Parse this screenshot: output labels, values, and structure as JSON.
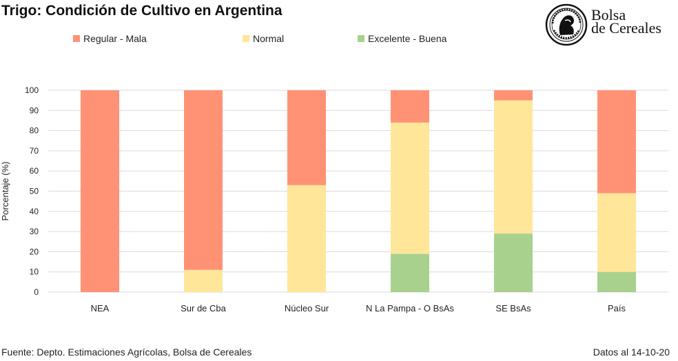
{
  "header": {
    "title": "Trigo: Condición de Cultivo en Argentina"
  },
  "logo": {
    "line1": "Bolsa",
    "line2": "de Cereales"
  },
  "footer": {
    "source": "Fuente: Depto. Estimaciones Agrícolas, Bolsa de Cereales",
    "date": "Datos al 14-10-20"
  },
  "colors": {
    "regular_mala": "#FF9275",
    "normal": "#FFE699",
    "excelente_buena": "#A9D18E",
    "grid": "#D9D9D9"
  },
  "chart_data": {
    "type": "bar",
    "stacked": true,
    "title": "Trigo: Condición de Cultivo en Argentina",
    "xlabel": "",
    "ylabel": "Porcentaje (%)",
    "ylim": [
      0,
      100
    ],
    "yticks": [
      0,
      10,
      20,
      30,
      40,
      50,
      60,
      70,
      80,
      90,
      100
    ],
    "grid": true,
    "legend": "top",
    "categories": [
      "NEA",
      "Sur de Cba",
      "Núcleo Sur",
      "N La Pampa - O BsAs",
      "SE BsAs",
      "País"
    ],
    "series": [
      {
        "name": "Excelente - Buena",
        "color": "#A9D18E",
        "values": [
          0,
          0,
          0,
          19,
          29,
          10
        ]
      },
      {
        "name": "Normal",
        "color": "#FFE699",
        "values": [
          0,
          11,
          53,
          65,
          66,
          39
        ]
      },
      {
        "name": "Regular - Mala",
        "color": "#FF9275",
        "values": [
          100,
          89,
          47,
          16,
          5,
          51
        ]
      }
    ],
    "legend_order": [
      "Regular - Mala",
      "Normal",
      "Excelente - Buena"
    ]
  }
}
